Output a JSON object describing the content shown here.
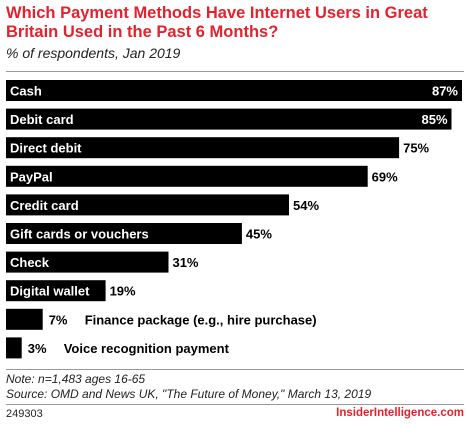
{
  "chart_data": {
    "type": "bar",
    "orientation": "horizontal",
    "title": "Which Payment Methods Have Internet Users in Great Britain Used in the Past 6 Months?",
    "subtitle": "% of respondents, Jan 2019",
    "categories": [
      "Cash",
      "Debit card",
      "Direct debit",
      "PayPal",
      "Credit card",
      "Gift cards or vouchers",
      "Check",
      "Digital wallet",
      "Finance package (e.g., hire purchase)",
      "Voice recognition payment"
    ],
    "values": [
      87,
      85,
      75,
      69,
      54,
      45,
      31,
      19,
      7,
      3
    ],
    "value_labels": [
      "87%",
      "85%",
      "75%",
      "69%",
      "54%",
      "45%",
      "31%",
      "19%",
      "7%",
      "3%"
    ],
    "xlim": [
      0,
      87
    ],
    "bar_color": "#000000",
    "label_color_in_bar": "#ffffff"
  },
  "footer": {
    "note": "Note: n=1,483 ages 16-65",
    "source": "Source: OMD and News UK, \"The Future of Money,\" March 13, 2019",
    "chart_id": "249303",
    "brand": "InsiderIntelligence.com"
  },
  "colors": {
    "accent": "#e4222e",
    "bar": "#000000"
  }
}
